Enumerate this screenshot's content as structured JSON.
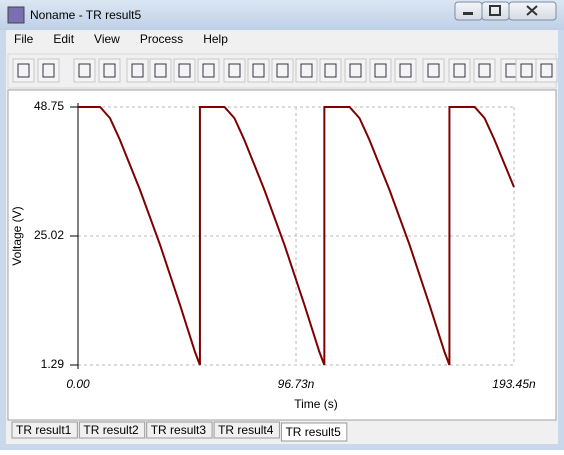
{
  "window": {
    "title": "Noname - TR result5"
  },
  "menu": [
    "File",
    "Edit",
    "View",
    "Process",
    "Help"
  ],
  "tabs": [
    "TR result1",
    "TR result2",
    "TR result3",
    "TR result4",
    "TR result5"
  ],
  "chart_data": {
    "type": "line",
    "xlabel": "Time (s)",
    "ylabel": "Voltage (V)",
    "x": [
      0,
      9.8,
      14.2,
      18.6,
      27.5,
      36.4,
      45.3,
      51.9,
      54.1,
      54.1,
      65.0,
      69.4,
      73.8,
      82.7,
      91.6,
      100.5,
      107.1,
      109.3,
      109.3,
      120.5,
      124.9,
      129.3,
      138.2,
      147.1,
      156.0,
      162.6,
      164.8,
      164.8,
      176.0,
      180.4,
      184.8,
      193.45
    ],
    "series": [
      {
        "color": "#800000",
        "values": [
          48.75,
          48.75,
          46.7,
          42.7,
          33.5,
          23.4,
          12.3,
          3.7,
          1.29,
          48.75,
          48.75,
          46.7,
          42.7,
          33.5,
          23.4,
          12.3,
          3.7,
          1.29,
          48.75,
          48.75,
          46.7,
          42.7,
          33.5,
          23.4,
          12.3,
          3.7,
          1.29,
          48.75,
          48.75,
          46.7,
          42.7,
          34
        ]
      }
    ],
    "xlim": [
      0,
      193.45
    ],
    "ylim": [
      1.29,
      48.75
    ],
    "xticks": [
      {
        "value": 0,
        "label": "0.00"
      },
      {
        "value": 96.73,
        "label": "96.73n"
      },
      {
        "value": 193.45,
        "label": "193.45n"
      }
    ],
    "yticks": [
      1.29,
      25.02,
      48.75
    ],
    "grid": true
  }
}
